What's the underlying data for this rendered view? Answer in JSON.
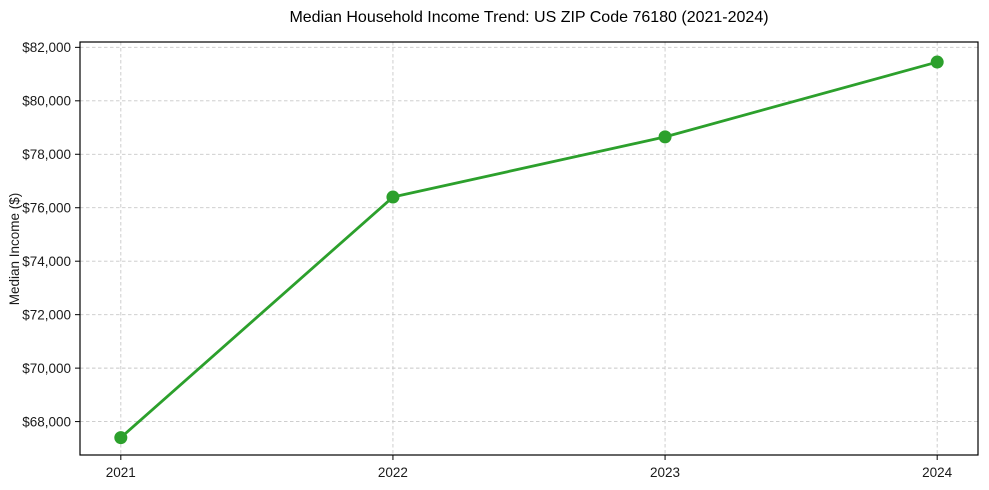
{
  "title": "Median Household Income Trend: US ZIP Code 76180 (2021-2024)",
  "chart_data": {
    "type": "line",
    "title": "Median Household Income Trend: US ZIP Code 76180 (2021-2024)",
    "xlabel": "",
    "ylabel": "Median Income ($)",
    "x": [
      2021,
      2022,
      2023,
      2024
    ],
    "series": [
      {
        "name": "Median Household Income",
        "values": [
          67400,
          76400,
          78650,
          81450
        ]
      }
    ],
    "xtick_labels": [
      "2021",
      "2022",
      "2023",
      "2024"
    ],
    "yticks": [
      68000,
      70000,
      72000,
      74000,
      76000,
      78000,
      80000,
      82000
    ],
    "ytick_labels": [
      "$68,000",
      "$70,000",
      "$72,000",
      "$74,000",
      "$76,000",
      "$78,000",
      "$80,000",
      "$82,000"
    ],
    "ylim": [
      66750,
      82200
    ],
    "grid": true,
    "legend": false,
    "line_color": "#2ca02c",
    "marker": "circle",
    "grid_color": "#c8c8c8",
    "border_color": "#000000"
  }
}
